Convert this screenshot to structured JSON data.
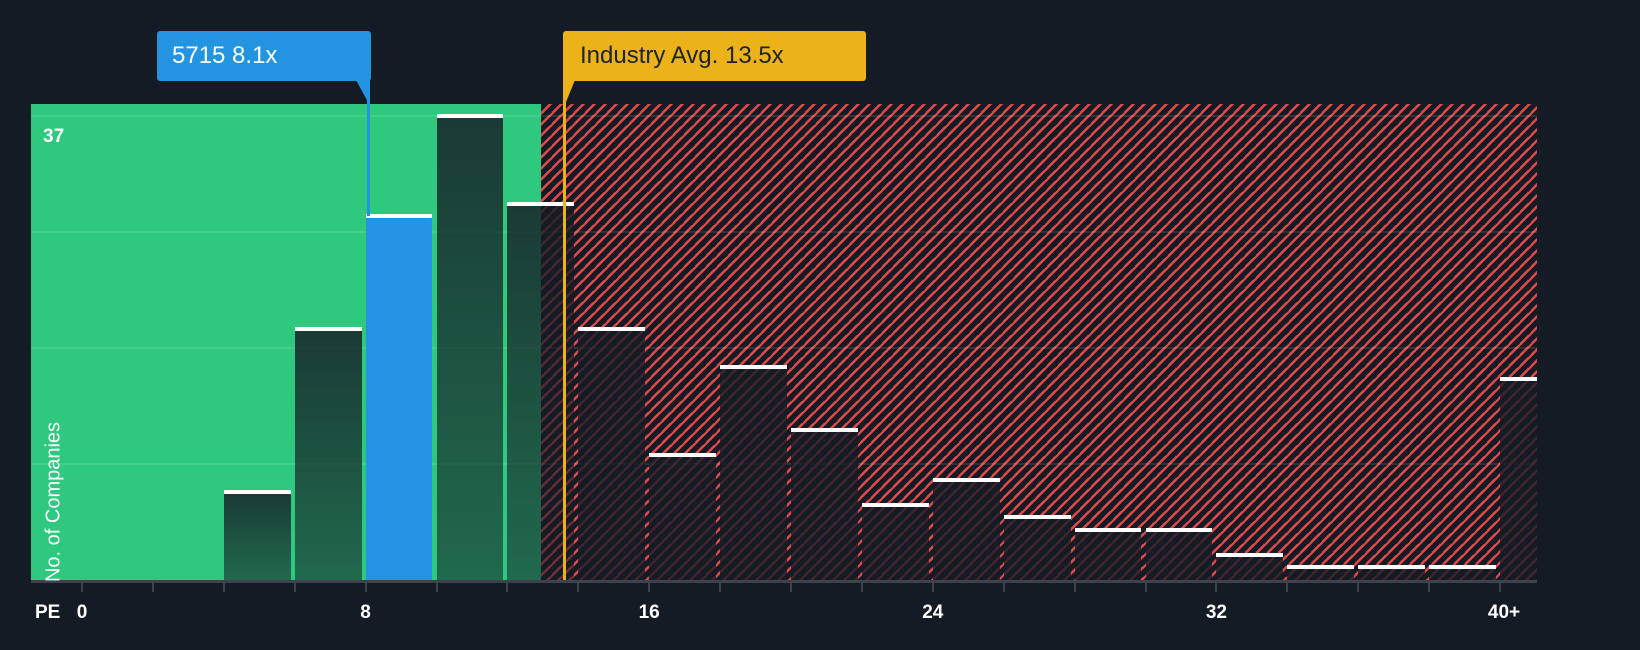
{
  "chart_data": {
    "type": "bar",
    "title": "",
    "xlabel": "PE",
    "ylabel": "No. of Companies",
    "x_ticks": [
      "0",
      "8",
      "16",
      "24",
      "32",
      "40+"
    ],
    "ylim": [
      0,
      37
    ],
    "y_max_label": "37",
    "grid": true,
    "bin_width": 2,
    "categories": [
      "4-6",
      "6-8",
      "8-10",
      "10-12",
      "12-14",
      "14-16",
      "16-18",
      "18-20",
      "20-22",
      "22-24",
      "24-26",
      "26-28",
      "28-30",
      "30-32",
      "32-34",
      "34-36",
      "36-38",
      "38-40",
      "40+"
    ],
    "values": [
      7,
      20,
      29,
      37,
      30,
      20,
      10,
      17,
      12,
      6,
      8,
      5,
      4,
      4,
      2,
      1,
      1,
      1,
      16
    ],
    "highlight_bin": "8-10",
    "annotations": [
      {
        "label": "5715 8.1x",
        "value": 8.1,
        "color": "#2394e0"
      },
      {
        "label": "Industry Avg. 13.5x",
        "value": 13.5,
        "color": "#ecb21a"
      }
    ],
    "zones": [
      {
        "name": "below-average",
        "from": 0,
        "to": 13.5,
        "color": "#2ec97f"
      },
      {
        "name": "above-average",
        "from": 13.5,
        "to": "40+",
        "color": "#e24a4a",
        "pattern": "diagonal-hatch"
      }
    ]
  },
  "labels": {
    "company_callout": "5715 8.1x",
    "industry_callout": "Industry Avg. 13.5x",
    "y_axis_title": "No. of Companies",
    "y_max": "37",
    "x_axis_title": "PE",
    "x_ticks": [
      "0",
      "8",
      "16",
      "24",
      "32",
      "40+"
    ]
  },
  "colors": {
    "background": "#151b24",
    "under_zone": "#2ec97f",
    "over_zone_hatch": "#e24a4a",
    "company": "#2394e0",
    "industry": "#ecb21a",
    "cap": "#ffffff"
  }
}
